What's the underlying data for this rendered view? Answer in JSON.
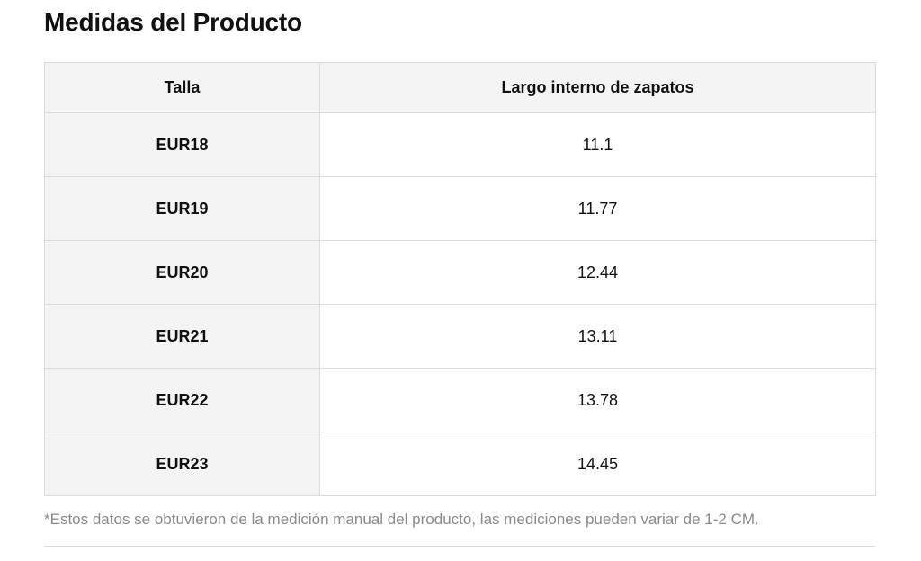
{
  "title": "Medidas del Producto",
  "table": {
    "headers": {
      "size": "Talla",
      "length": "Largo interno de zapatos"
    },
    "rows": [
      {
        "size": "EUR18",
        "length": "11.1"
      },
      {
        "size": "EUR19",
        "length": "11.77"
      },
      {
        "size": "EUR20",
        "length": "12.44"
      },
      {
        "size": "EUR21",
        "length": "13.11"
      },
      {
        "size": "EUR22",
        "length": "13.78"
      },
      {
        "size": "EUR23",
        "length": "14.45"
      }
    ]
  },
  "note": "*Estos datos se obtuvieron de la medición manual del producto, las mediciones pueden variar de 1-2 CM.",
  "colors": {
    "header_bg": "#f4f4f4",
    "border": "#dcdcdc",
    "note_text": "#8a8a8a"
  }
}
